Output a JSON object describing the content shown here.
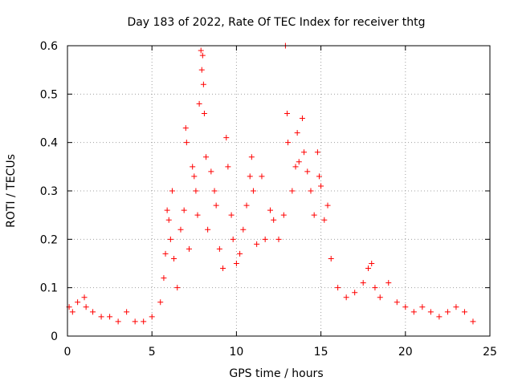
{
  "chart_data": {
    "type": "scatter",
    "title": "Day 183 of 2022, Rate Of TEC Index for receiver thtg",
    "xlabel": "GPS time / hours",
    "ylabel": "ROTI / TECUs",
    "xlim": [
      0,
      25
    ],
    "ylim": [
      0,
      0.6
    ],
    "xticks": [
      0,
      5,
      10,
      15,
      20,
      25
    ],
    "xtick_labels": [
      "0",
      "5",
      "10",
      "15",
      "20",
      "25"
    ],
    "yticks": [
      0,
      0.1,
      0.2,
      0.3,
      0.4,
      0.5,
      0.6
    ],
    "ytick_labels": [
      "0",
      "0.1",
      "0.2",
      "0.3",
      "0.4",
      "0.5",
      "0.6"
    ],
    "grid": true,
    "marker": "plus",
    "color": "#ff0000",
    "x_range_of_data": [
      0,
      24
    ],
    "points": [
      [
        0.1,
        0.06
      ],
      [
        0.3,
        0.05
      ],
      [
        0.6,
        0.07
      ],
      [
        1.0,
        0.08
      ],
      [
        1.1,
        0.06
      ],
      [
        1.5,
        0.05
      ],
      [
        2.0,
        0.04
      ],
      [
        2.5,
        0.04
      ],
      [
        3.0,
        0.03
      ],
      [
        3.5,
        0.05
      ],
      [
        4.0,
        0.03
      ],
      [
        4.5,
        0.03
      ],
      [
        5.0,
        0.04
      ],
      [
        5.5,
        0.07
      ],
      [
        5.7,
        0.12
      ],
      [
        5.8,
        0.17
      ],
      [
        5.9,
        0.26
      ],
      [
        6.0,
        0.24
      ],
      [
        6.1,
        0.2
      ],
      [
        6.2,
        0.3
      ],
      [
        6.3,
        0.16
      ],
      [
        6.5,
        0.1
      ],
      [
        6.7,
        0.22
      ],
      [
        6.9,
        0.26
      ],
      [
        7.0,
        0.43
      ],
      [
        7.05,
        0.4
      ],
      [
        7.2,
        0.18
      ],
      [
        7.4,
        0.35
      ],
      [
        7.5,
        0.33
      ],
      [
        7.6,
        0.3
      ],
      [
        7.7,
        0.25
      ],
      [
        7.8,
        0.48
      ],
      [
        7.9,
        0.59
      ],
      [
        7.95,
        0.55
      ],
      [
        8.0,
        0.58
      ],
      [
        8.05,
        0.52
      ],
      [
        8.1,
        0.46
      ],
      [
        8.2,
        0.37
      ],
      [
        8.3,
        0.22
      ],
      [
        8.5,
        0.34
      ],
      [
        8.7,
        0.3
      ],
      [
        8.8,
        0.27
      ],
      [
        9.0,
        0.18
      ],
      [
        9.2,
        0.14
      ],
      [
        9.4,
        0.41
      ],
      [
        9.5,
        0.35
      ],
      [
        9.7,
        0.25
      ],
      [
        9.8,
        0.2
      ],
      [
        10.0,
        0.15
      ],
      [
        10.2,
        0.17
      ],
      [
        10.4,
        0.22
      ],
      [
        10.6,
        0.27
      ],
      [
        10.8,
        0.33
      ],
      [
        10.9,
        0.37
      ],
      [
        11.0,
        0.3
      ],
      [
        11.2,
        0.19
      ],
      [
        11.5,
        0.33
      ],
      [
        11.7,
        0.2
      ],
      [
        12.0,
        0.26
      ],
      [
        12.2,
        0.24
      ],
      [
        12.5,
        0.2
      ],
      [
        12.8,
        0.25
      ],
      [
        12.9,
        0.6
      ],
      [
        13.0,
        0.46
      ],
      [
        13.05,
        0.4
      ],
      [
        13.3,
        0.3
      ],
      [
        13.5,
        0.35
      ],
      [
        13.6,
        0.42
      ],
      [
        13.7,
        0.36
      ],
      [
        13.9,
        0.45
      ],
      [
        14.0,
        0.38
      ],
      [
        14.2,
        0.34
      ],
      [
        14.4,
        0.3
      ],
      [
        14.6,
        0.25
      ],
      [
        14.8,
        0.38
      ],
      [
        14.9,
        0.33
      ],
      [
        15.0,
        0.31
      ],
      [
        15.2,
        0.24
      ],
      [
        15.4,
        0.27
      ],
      [
        15.6,
        0.16
      ],
      [
        16.0,
        0.1
      ],
      [
        16.5,
        0.08
      ],
      [
        17.0,
        0.09
      ],
      [
        17.5,
        0.11
      ],
      [
        17.8,
        0.14
      ],
      [
        18.0,
        0.15
      ],
      [
        18.2,
        0.1
      ],
      [
        18.5,
        0.08
      ],
      [
        19.0,
        0.11
      ],
      [
        19.5,
        0.07
      ],
      [
        20.0,
        0.06
      ],
      [
        20.5,
        0.05
      ],
      [
        21.0,
        0.06
      ],
      [
        21.5,
        0.05
      ],
      [
        22.0,
        0.04
      ],
      [
        22.5,
        0.05
      ],
      [
        23.0,
        0.06
      ],
      [
        23.5,
        0.05
      ],
      [
        24.0,
        0.03
      ]
    ]
  }
}
